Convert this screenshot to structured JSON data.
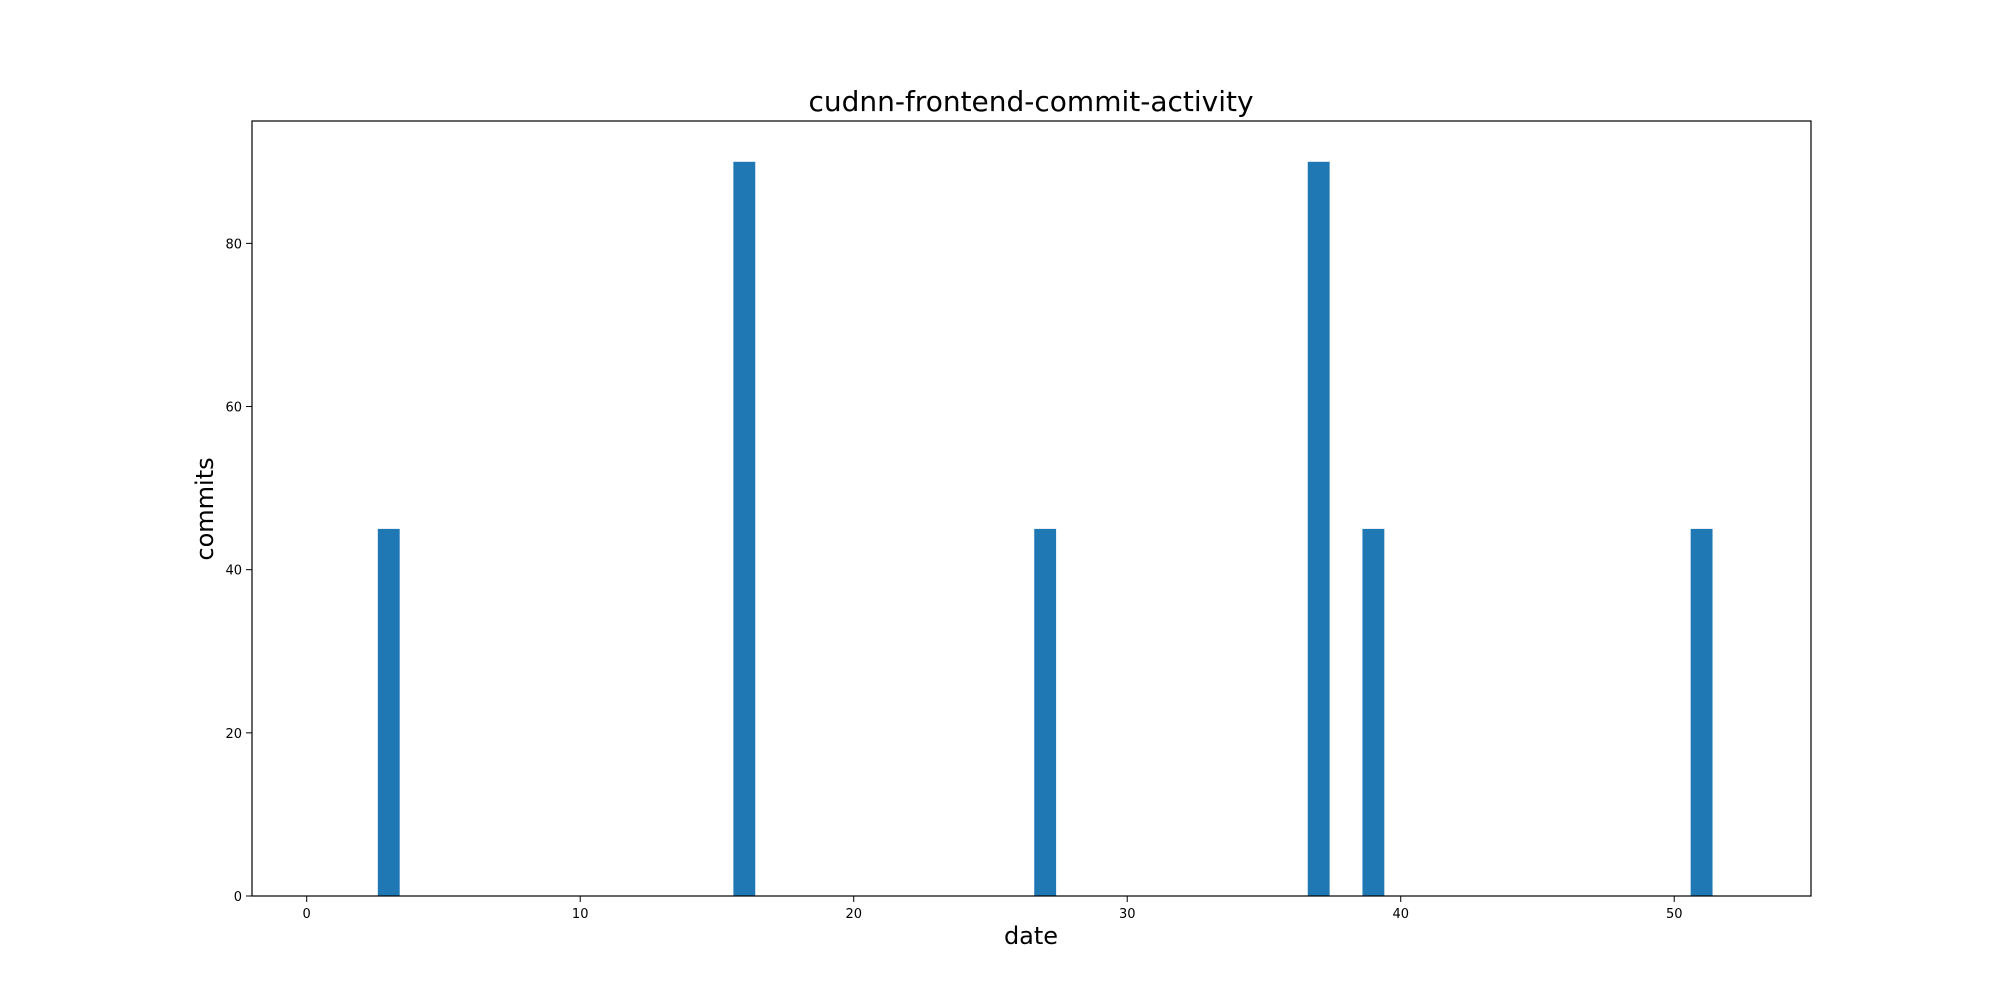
{
  "chart_data": {
    "type": "bar",
    "title": "cudnn-frontend-commit-activity",
    "xlabel": "date",
    "ylabel": "commits",
    "x": [
      3,
      16,
      27,
      37,
      39,
      51
    ],
    "values": [
      45,
      90,
      45,
      90,
      45,
      45
    ],
    "bar_width": 0.8,
    "xlim": [
      -2,
      55
    ],
    "ylim": [
      0,
      95
    ],
    "xticks": [
      0,
      10,
      20,
      30,
      40,
      50
    ],
    "yticks": [
      0,
      20,
      40,
      60,
      80
    ],
    "grid": false,
    "bar_color": "#1f77b4"
  }
}
